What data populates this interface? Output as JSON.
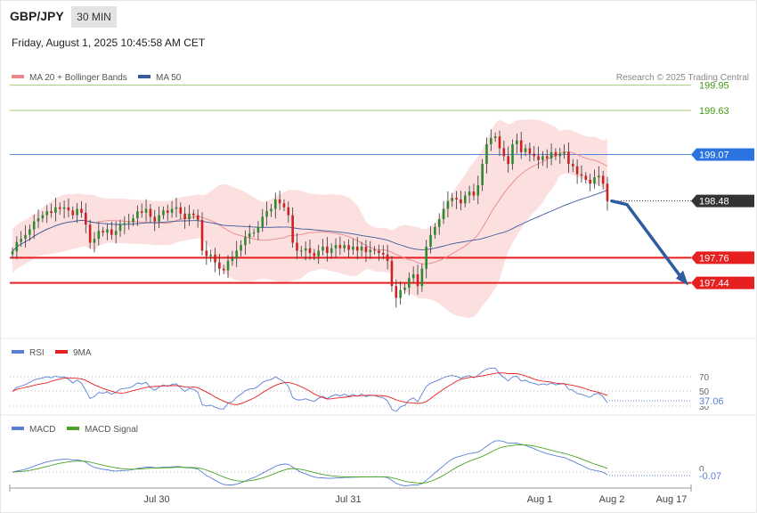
{
  "header": {
    "symbol": "GBP/JPY",
    "timeframe": "30 MIN",
    "datetime": "Friday, August 1, 2025 10:45:58 AM CET",
    "copyright": "Research © 2025 Trading Central"
  },
  "colors": {
    "bull": "#2f8a2f",
    "bear": "#cc2222",
    "bb_fill": "#fbd5d5",
    "ma20": "#e8888a",
    "ma50": "#3a5a9a",
    "support": "#e62020",
    "resistance_green": "#9fce7a",
    "pivot_blue": "#5a86d8",
    "rsi": "#5a7fd6",
    "rsi_ma": "#e62020",
    "macd": "#5a7fd6",
    "macd_signal": "#4aa324",
    "arrow": "#2e5c9e",
    "last_price_tag": "#333333"
  },
  "chart_data": [
    {
      "type": "candlestick",
      "name": "price",
      "legend": [
        "MA 20 + Bollinger Bands",
        "MA 50"
      ],
      "xlabels": [
        "Jul 30",
        "Jul 31",
        "Aug 1",
        "Aug 2",
        "Aug 17"
      ],
      "ylim": [
        196.78,
        200.15
      ],
      "levels": [
        {
          "label": "199.95",
          "value": 199.95,
          "style": "resistance_green"
        },
        {
          "label": "199.63",
          "value": 199.63,
          "style": "resistance_green"
        },
        {
          "label": "199.07",
          "value": 199.07,
          "style": "pivot_blue"
        },
        {
          "label": "198.48",
          "value": 198.48,
          "style": "last_price_tag"
        },
        {
          "label": "197.76",
          "value": 197.76,
          "style": "support"
        },
        {
          "label": "197.44",
          "value": 197.44,
          "style": "support"
        }
      ],
      "closes": [
        197.84,
        197.96,
        198.0,
        198.05,
        198.12,
        198.22,
        198.26,
        198.3,
        198.35,
        198.33,
        198.4,
        198.38,
        198.4,
        198.36,
        198.3,
        198.38,
        198.33,
        198.18,
        197.95,
        198.0,
        198.1,
        198.08,
        198.12,
        198.05,
        198.1,
        198.18,
        198.2,
        198.21,
        198.26,
        198.35,
        198.33,
        198.38,
        198.28,
        198.22,
        198.3,
        198.36,
        198.33,
        198.38,
        198.4,
        198.32,
        198.25,
        198.32,
        198.3,
        198.24,
        197.85,
        197.78,
        197.8,
        197.7,
        197.62,
        197.6,
        197.72,
        197.75,
        197.85,
        197.92,
        198.02,
        198.07,
        198.08,
        198.15,
        198.28,
        198.35,
        198.38,
        198.5,
        198.45,
        198.4,
        198.3,
        197.95,
        197.85,
        197.85,
        197.88,
        197.82,
        197.78,
        197.85,
        197.9,
        197.82,
        197.88,
        197.92,
        197.88,
        197.92,
        197.86,
        197.9,
        197.85,
        197.9,
        197.83,
        197.86,
        197.85,
        197.82,
        197.8,
        197.72,
        197.4,
        197.25,
        197.35,
        197.38,
        197.5,
        197.55,
        197.4,
        197.62,
        197.9,
        198.05,
        198.15,
        198.25,
        198.38,
        198.48,
        198.52,
        198.5,
        198.45,
        198.55,
        198.6,
        198.55,
        198.68,
        198.95,
        199.2,
        199.28,
        199.3,
        199.15,
        199.05,
        198.95,
        199.2,
        199.25,
        199.1,
        199.15,
        199.08,
        199.05,
        199.0,
        199.05,
        199.02,
        199.1,
        199.05,
        199.08,
        199.1,
        198.95,
        198.92,
        198.82,
        198.8,
        198.75,
        198.7,
        198.78,
        198.8,
        198.7,
        198.48
      ],
      "rsi": {
        "legend": [
          "RSI",
          "9MA"
        ],
        "levels": [
          "70",
          "50",
          "30"
        ],
        "value": "37.06"
      },
      "macd": {
        "legend": [
          "MACD",
          "MACD Signal"
        ],
        "levels": [
          "0"
        ],
        "value": "-0.07"
      }
    }
  ]
}
